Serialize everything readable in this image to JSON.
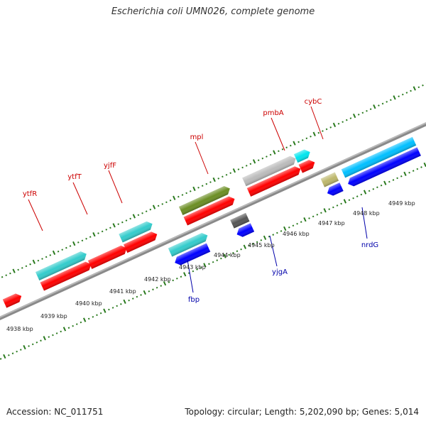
{
  "title": "Escherichia coli UMN026, complete genome",
  "footer": {
    "accession": "Accession: NC_011751",
    "summary": "Topology: circular; Length: 5,202,090 bp; Genes: 5,014"
  },
  "colors": {
    "forward_label": "#cc0000",
    "reverse_label": "#0000aa",
    "tick": "#2a7a1e",
    "backbone": "#888888"
  },
  "ruler": [
    {
      "label": "4938 kbp"
    },
    {
      "label": "4939 kbp"
    },
    {
      "label": "4940 kbp"
    },
    {
      "label": "4941 kbp"
    },
    {
      "label": "4942 kbp"
    },
    {
      "label": "4943 kbp"
    },
    {
      "label": "4944 kbp"
    },
    {
      "label": "4945 kbp"
    },
    {
      "label": "4946 kbp"
    },
    {
      "label": "4947 kbp"
    },
    {
      "label": "4948 kbp"
    },
    {
      "label": "4949 kbp"
    }
  ],
  "forward_labels": [
    {
      "name": "ytfR"
    },
    {
      "name": "ytfT"
    },
    {
      "name": "yjfF"
    },
    {
      "name": "mpl"
    },
    {
      "name": "pmbA"
    },
    {
      "name": "cybC"
    }
  ],
  "reverse_labels": [
    {
      "name": "fbp"
    },
    {
      "name": "yjgA"
    },
    {
      "name": "nrdG"
    }
  ],
  "feature_colors": {
    "gene": "#ff0000",
    "cds_forward": "#33cccc",
    "cds_reverse": "#0000ff",
    "cds_olive": "#6b8e23",
    "cds_gray": "#bbbbbb",
    "cds_dark": "#555555",
    "cds_khaki": "#bdb76b",
    "cds_cyan": "#00e5ee",
    "cds_sky": "#00bfff"
  }
}
